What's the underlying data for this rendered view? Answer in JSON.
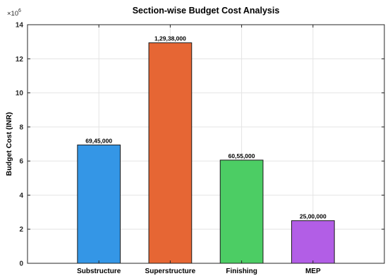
{
  "chart_data": {
    "type": "bar",
    "title": "Section-wise Budget Cost Analysis",
    "xlabel": "",
    "ylabel": "Budget Cost (INR)",
    "exponent_label": "×10",
    "exponent_power": "6",
    "ylim": [
      0,
      14000000
    ],
    "yticks": [
      0,
      2000000,
      4000000,
      6000000,
      8000000,
      10000000,
      12000000,
      14000000
    ],
    "ytick_labels": [
      "0",
      "2",
      "4",
      "6",
      "8",
      "10",
      "12",
      "14"
    ],
    "grid": true,
    "categories": [
      "Substructure",
      "Superstructure",
      "Finishing",
      "MEP"
    ],
    "values": [
      6945000,
      12938000,
      6055000,
      2500000
    ],
    "data_labels": [
      "69,45,000",
      "1,29,38,000",
      "60,55,000",
      "25,00,000"
    ],
    "colors": [
      "#3496e6",
      "#e66634",
      "#4ccd64",
      "#b25ee6"
    ]
  }
}
